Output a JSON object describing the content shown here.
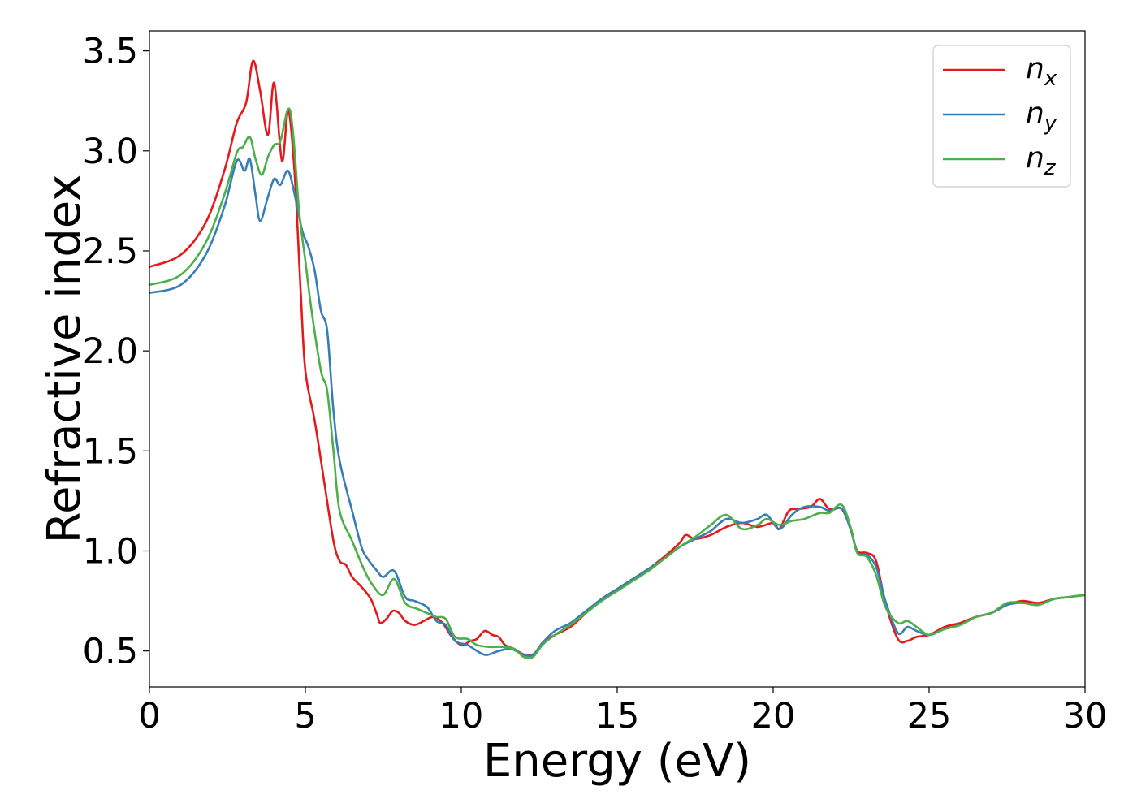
{
  "chart_data": {
    "type": "line",
    "xlabel": "Energy (eV)",
    "ylabel": "Refractive index",
    "xlim": [
      0,
      30
    ],
    "ylim": [
      0.32,
      3.6
    ],
    "xticks": [
      0,
      5,
      10,
      15,
      20,
      25,
      30
    ],
    "xtick_labels": [
      "0",
      "5",
      "10",
      "15",
      "20",
      "25",
      "30"
    ],
    "yticks": [
      0.5,
      1.0,
      1.5,
      2.0,
      2.5,
      3.0,
      3.5
    ],
    "ytick_labels": [
      "0.5",
      "1.0",
      "1.5",
      "2.0",
      "2.5",
      "3.0",
      "3.5"
    ],
    "grid": false,
    "legend_position": "top-right",
    "series": [
      {
        "name": "n",
        "sub": "x",
        "color": "#e41a1c",
        "points": [
          [
            0,
            2.42
          ],
          [
            1,
            2.48
          ],
          [
            1.8,
            2.64
          ],
          [
            2.4,
            2.9
          ],
          [
            2.8,
            3.14
          ],
          [
            3.1,
            3.24
          ],
          [
            3.32,
            3.45
          ],
          [
            3.55,
            3.3
          ],
          [
            3.8,
            3.08
          ],
          [
            4.0,
            3.34
          ],
          [
            4.25,
            2.95
          ],
          [
            4.45,
            3.2
          ],
          [
            4.65,
            2.9
          ],
          [
            4.85,
            2.3
          ],
          [
            5.0,
            1.9
          ],
          [
            5.3,
            1.65
          ],
          [
            5.6,
            1.35
          ],
          [
            5.9,
            1.05
          ],
          [
            6.1,
            0.95
          ],
          [
            6.3,
            0.93
          ],
          [
            6.5,
            0.87
          ],
          [
            6.8,
            0.82
          ],
          [
            7.1,
            0.76
          ],
          [
            7.3,
            0.68
          ],
          [
            7.4,
            0.64
          ],
          [
            7.6,
            0.66
          ],
          [
            7.8,
            0.7
          ],
          [
            8.0,
            0.69
          ],
          [
            8.2,
            0.65
          ],
          [
            8.5,
            0.63
          ],
          [
            8.8,
            0.65
          ],
          [
            9.1,
            0.67
          ],
          [
            9.4,
            0.64
          ],
          [
            9.7,
            0.57
          ],
          [
            10.0,
            0.53
          ],
          [
            10.3,
            0.55
          ],
          [
            10.5,
            0.56
          ],
          [
            10.75,
            0.6
          ],
          [
            11.0,
            0.58
          ],
          [
            11.2,
            0.57
          ],
          [
            11.4,
            0.53
          ],
          [
            11.7,
            0.51
          ],
          [
            11.9,
            0.49
          ],
          [
            12.1,
            0.48
          ],
          [
            12.4,
            0.49
          ],
          [
            12.6,
            0.54
          ],
          [
            13.0,
            0.58
          ],
          [
            13.5,
            0.62
          ],
          [
            14.0,
            0.69
          ],
          [
            14.5,
            0.76
          ],
          [
            15.0,
            0.81
          ],
          [
            15.5,
            0.86
          ],
          [
            16.0,
            0.91
          ],
          [
            16.5,
            0.97
          ],
          [
            17.0,
            1.04
          ],
          [
            17.2,
            1.08
          ],
          [
            17.5,
            1.06
          ],
          [
            18.0,
            1.08
          ],
          [
            18.5,
            1.12
          ],
          [
            19.0,
            1.14
          ],
          [
            19.5,
            1.12
          ],
          [
            20.0,
            1.14
          ],
          [
            20.2,
            1.11
          ],
          [
            20.5,
            1.2
          ],
          [
            20.8,
            1.21
          ],
          [
            21.2,
            1.22
          ],
          [
            21.5,
            1.26
          ],
          [
            21.8,
            1.21
          ],
          [
            22.2,
            1.21
          ],
          [
            22.5,
            1.1
          ],
          [
            22.7,
            1.0
          ],
          [
            23.0,
            0.99
          ],
          [
            23.3,
            0.95
          ],
          [
            23.6,
            0.74
          ],
          [
            24.0,
            0.56
          ],
          [
            24.3,
            0.55
          ],
          [
            24.6,
            0.57
          ],
          [
            25.0,
            0.58
          ],
          [
            25.5,
            0.62
          ],
          [
            26.0,
            0.64
          ],
          [
            26.5,
            0.67
          ],
          [
            27.0,
            0.69
          ],
          [
            27.5,
            0.73
          ],
          [
            28.0,
            0.75
          ],
          [
            28.5,
            0.74
          ],
          [
            29.0,
            0.76
          ],
          [
            29.5,
            0.77
          ],
          [
            30.0,
            0.78
          ]
        ]
      },
      {
        "name": "n",
        "sub": "y",
        "color": "#377eb8",
        "points": [
          [
            0,
            2.29
          ],
          [
            1,
            2.33
          ],
          [
            1.8,
            2.48
          ],
          [
            2.4,
            2.72
          ],
          [
            2.8,
            2.95
          ],
          [
            3.05,
            2.9
          ],
          [
            3.22,
            2.96
          ],
          [
            3.4,
            2.78
          ],
          [
            3.55,
            2.65
          ],
          [
            3.8,
            2.77
          ],
          [
            4.0,
            2.86
          ],
          [
            4.2,
            2.83
          ],
          [
            4.45,
            2.9
          ],
          [
            4.7,
            2.75
          ],
          [
            4.9,
            2.6
          ],
          [
            5.1,
            2.52
          ],
          [
            5.3,
            2.4
          ],
          [
            5.5,
            2.2
          ],
          [
            5.7,
            2.1
          ],
          [
            5.9,
            1.7
          ],
          [
            6.1,
            1.45
          ],
          [
            6.5,
            1.2
          ],
          [
            6.8,
            1.02
          ],
          [
            7.0,
            0.96
          ],
          [
            7.3,
            0.9
          ],
          [
            7.5,
            0.87
          ],
          [
            7.85,
            0.9
          ],
          [
            8.2,
            0.77
          ],
          [
            8.5,
            0.75
          ],
          [
            8.9,
            0.72
          ],
          [
            9.2,
            0.65
          ],
          [
            9.5,
            0.63
          ],
          [
            9.8,
            0.55
          ],
          [
            10.2,
            0.53
          ],
          [
            10.5,
            0.5
          ],
          [
            10.8,
            0.48
          ],
          [
            11.2,
            0.5
          ],
          [
            11.6,
            0.51
          ],
          [
            12.0,
            0.48
          ],
          [
            12.3,
            0.48
          ],
          [
            12.6,
            0.54
          ],
          [
            13.0,
            0.6
          ],
          [
            13.5,
            0.64
          ],
          [
            14.0,
            0.7
          ],
          [
            14.5,
            0.76
          ],
          [
            15.0,
            0.81
          ],
          [
            15.5,
            0.86
          ],
          [
            16.0,
            0.91
          ],
          [
            16.5,
            0.96
          ],
          [
            17.0,
            1.02
          ],
          [
            17.5,
            1.06
          ],
          [
            18.0,
            1.1
          ],
          [
            18.5,
            1.16
          ],
          [
            19.0,
            1.14
          ],
          [
            19.5,
            1.16
          ],
          [
            19.8,
            1.18
          ],
          [
            20.2,
            1.11
          ],
          [
            20.6,
            1.18
          ],
          [
            21.0,
            1.22
          ],
          [
            21.5,
            1.22
          ],
          [
            21.8,
            1.2
          ],
          [
            22.2,
            1.21
          ],
          [
            22.5,
            1.1
          ],
          [
            22.7,
            0.99
          ],
          [
            23.0,
            0.98
          ],
          [
            23.3,
            0.92
          ],
          [
            23.6,
            0.75
          ],
          [
            24.0,
            0.59
          ],
          [
            24.3,
            0.62
          ],
          [
            24.6,
            0.6
          ],
          [
            25.0,
            0.58
          ],
          [
            25.5,
            0.61
          ],
          [
            26.0,
            0.63
          ],
          [
            26.5,
            0.67
          ],
          [
            27.0,
            0.69
          ],
          [
            27.5,
            0.73
          ],
          [
            28.0,
            0.74
          ],
          [
            28.5,
            0.73
          ],
          [
            29.0,
            0.76
          ],
          [
            29.5,
            0.77
          ],
          [
            30.0,
            0.78
          ]
        ]
      },
      {
        "name": "n",
        "sub": "z",
        "color": "#4daf4a",
        "points": [
          [
            0,
            2.33
          ],
          [
            1,
            2.38
          ],
          [
            1.8,
            2.54
          ],
          [
            2.4,
            2.78
          ],
          [
            2.8,
            2.99
          ],
          [
            3.0,
            3.02
          ],
          [
            3.22,
            3.07
          ],
          [
            3.4,
            2.96
          ],
          [
            3.6,
            2.88
          ],
          [
            3.8,
            2.97
          ],
          [
            4.0,
            3.03
          ],
          [
            4.2,
            3.05
          ],
          [
            4.45,
            3.21
          ],
          [
            4.6,
            3.1
          ],
          [
            4.8,
            2.7
          ],
          [
            5.0,
            2.45
          ],
          [
            5.2,
            2.2
          ],
          [
            5.5,
            1.9
          ],
          [
            5.7,
            1.8
          ],
          [
            5.9,
            1.5
          ],
          [
            6.1,
            1.2
          ],
          [
            6.5,
            1.05
          ],
          [
            6.9,
            0.9
          ],
          [
            7.2,
            0.82
          ],
          [
            7.5,
            0.78
          ],
          [
            7.85,
            0.86
          ],
          [
            8.2,
            0.74
          ],
          [
            8.6,
            0.71
          ],
          [
            8.9,
            0.69
          ],
          [
            9.2,
            0.67
          ],
          [
            9.5,
            0.66
          ],
          [
            9.8,
            0.57
          ],
          [
            10.2,
            0.56
          ],
          [
            10.5,
            0.53
          ],
          [
            10.9,
            0.52
          ],
          [
            11.3,
            0.52
          ],
          [
            11.7,
            0.51
          ],
          [
            12.0,
            0.47
          ],
          [
            12.3,
            0.47
          ],
          [
            12.6,
            0.53
          ],
          [
            13.0,
            0.58
          ],
          [
            13.5,
            0.63
          ],
          [
            14.0,
            0.69
          ],
          [
            14.5,
            0.75
          ],
          [
            15.0,
            0.8
          ],
          [
            15.5,
            0.85
          ],
          [
            16.0,
            0.9
          ],
          [
            16.5,
            0.96
          ],
          [
            17.0,
            1.02
          ],
          [
            17.5,
            1.07
          ],
          [
            18.0,
            1.13
          ],
          [
            18.5,
            1.18
          ],
          [
            19.0,
            1.11
          ],
          [
            19.5,
            1.13
          ],
          [
            19.8,
            1.16
          ],
          [
            20.2,
            1.13
          ],
          [
            20.6,
            1.15
          ],
          [
            21.0,
            1.16
          ],
          [
            21.5,
            1.19
          ],
          [
            21.8,
            1.19
          ],
          [
            22.2,
            1.23
          ],
          [
            22.5,
            1.11
          ],
          [
            22.7,
            0.99
          ],
          [
            23.0,
            0.97
          ],
          [
            23.3,
            0.88
          ],
          [
            23.6,
            0.72
          ],
          [
            24.0,
            0.64
          ],
          [
            24.3,
            0.65
          ],
          [
            24.6,
            0.62
          ],
          [
            25.0,
            0.58
          ],
          [
            25.5,
            0.61
          ],
          [
            26.0,
            0.63
          ],
          [
            26.5,
            0.67
          ],
          [
            27.0,
            0.69
          ],
          [
            27.5,
            0.74
          ],
          [
            28.0,
            0.74
          ],
          [
            28.5,
            0.73
          ],
          [
            29.0,
            0.76
          ],
          [
            29.5,
            0.77
          ],
          [
            30.0,
            0.78
          ]
        ]
      }
    ]
  }
}
